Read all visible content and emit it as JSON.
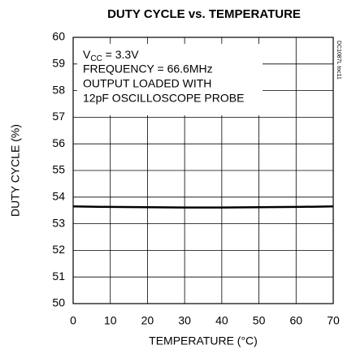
{
  "chart_data": {
    "type": "line",
    "title": "DUTY CYCLE vs. TEMPERATURE",
    "x_label": "TEMPERATURE (°C)",
    "y_label": "DUTY CYCLE (%)",
    "x": [
      0,
      10,
      20,
      30,
      40,
      50,
      60,
      70
    ],
    "series": [
      {
        "color": "#000000",
        "values": [
          53.65,
          53.63,
          53.62,
          53.61,
          53.61,
          53.62,
          53.63,
          53.65
        ]
      }
    ],
    "xlim": [
      0,
      70
    ],
    "xticks": [
      0,
      10,
      20,
      30,
      40,
      50,
      60,
      70
    ],
    "ylim": [
      50,
      60
    ],
    "yticks": [
      50,
      51,
      52,
      53,
      54,
      55,
      56,
      57,
      58,
      59,
      60
    ],
    "grid": true,
    "annotation": {
      "vcc": {
        "base": "V",
        "sub": "CC",
        "rest": " = 3.3V"
      },
      "lines": [
        "FREQUENCY = 66.6MHz",
        "OUTPUT LOADED WITH",
        "12pF OSCILLOSCOPE PROBE"
      ]
    },
    "figure_id": "DC1087L toc11"
  }
}
